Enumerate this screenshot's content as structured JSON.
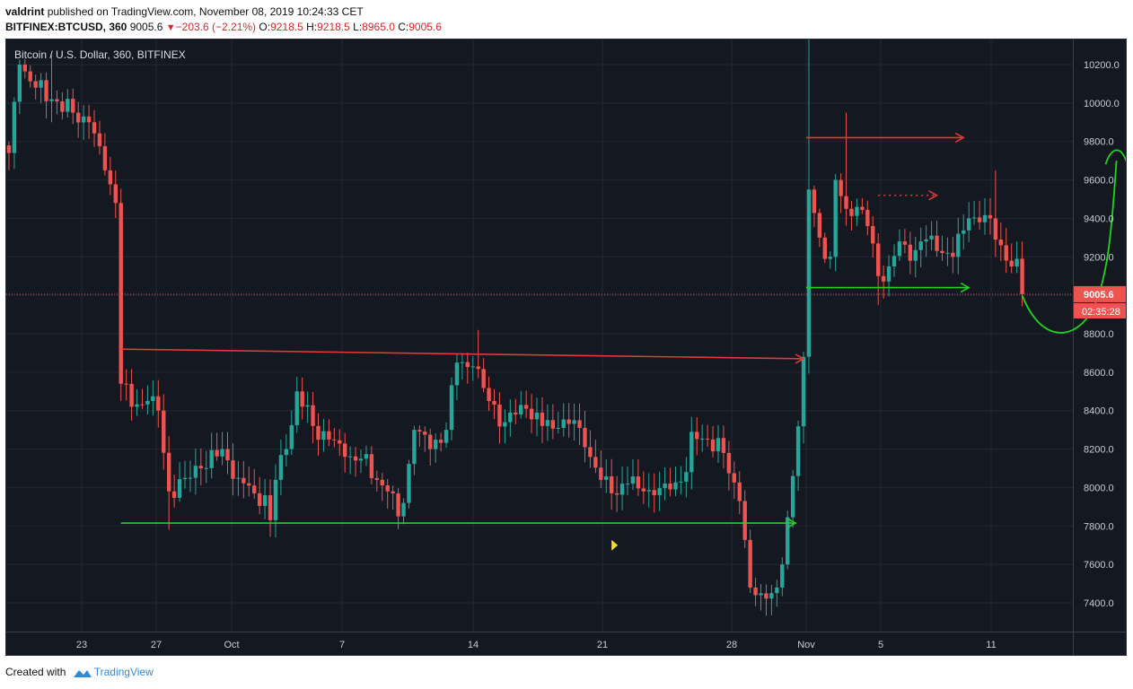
{
  "header": {
    "author": "valdrint",
    "published_text": "published on TradingView.com, November 08, 2019 10:24:33 CET",
    "symbol": "BITFINEX:BTCUSD, 360",
    "last": "9005.6",
    "change": "−203.6 (−2.21%)",
    "o_label": "O:",
    "o": "9218.5",
    "h_label": "H:",
    "h": "9218.5",
    "l_label": "L:",
    "l": "8965.0",
    "c_label": "C:",
    "c": "9005.6"
  },
  "chart_data": {
    "type": "candlestick",
    "title": "Bitcoin / U.S. Dollar, 360, BITFINEX",
    "price_label": "9005.6",
    "countdown_label": "02:35:28",
    "y_ticks": [
      "10200.0",
      "10000.0",
      "9800.0",
      "9600.0",
      "9400.0",
      "9200.0",
      "9000.0",
      "8800.0",
      "8600.0",
      "8400.0",
      "8200.0",
      "8000.0",
      "7800.0",
      "7600.0",
      "7400.0"
    ],
    "x_ticks": [
      "23",
      "27",
      "Oct",
      "7",
      "14",
      "21",
      "28",
      "Nov",
      "5",
      "11"
    ],
    "colors": {
      "up": "#26a69a",
      "down": "#ef5350",
      "bg": "#141821",
      "annot_red": "#e53935",
      "annot_green": "#22d41e",
      "marker": "#f5e11b"
    },
    "anchors": [
      [
        0,
        9740
      ],
      [
        2,
        10200
      ],
      [
        5,
        10080
      ],
      [
        8,
        10020
      ],
      [
        12,
        9950
      ],
      [
        15,
        9900
      ],
      [
        18,
        9650
      ],
      [
        20,
        9480
      ],
      [
        21,
        8540
      ],
      [
        23,
        8420
      ],
      [
        26,
        8450
      ],
      [
        28,
        8400
      ],
      [
        30,
        7980
      ],
      [
        33,
        8050
      ],
      [
        36,
        8100
      ],
      [
        40,
        8200
      ],
      [
        43,
        8050
      ],
      [
        46,
        7970
      ],
      [
        48,
        7960
      ],
      [
        49,
        7830
      ],
      [
        50,
        8040
      ],
      [
        52,
        8200
      ],
      [
        54,
        8500
      ],
      [
        57,
        8320
      ],
      [
        60,
        8250
      ],
      [
        63,
        8160
      ],
      [
        66,
        8150
      ],
      [
        69,
        8040
      ],
      [
        71,
        7980
      ],
      [
        73,
        7850
      ],
      [
        74,
        7920
      ],
      [
        76,
        8300
      ],
      [
        79,
        8200
      ],
      [
        82,
        8300
      ],
      [
        84,
        8650
      ],
      [
        87,
        8630
      ],
      [
        90,
        8450
      ],
      [
        93,
        8340
      ],
      [
        95,
        8380
      ],
      [
        97,
        8410
      ],
      [
        100,
        8320
      ],
      [
        103,
        8310
      ],
      [
        106,
        8350
      ],
      [
        108,
        8210
      ],
      [
        111,
        8040
      ],
      [
        113,
        7970
      ],
      [
        116,
        8020
      ],
      [
        119,
        7980
      ],
      [
        121,
        7960
      ],
      [
        124,
        7990
      ],
      [
        127,
        8080
      ],
      [
        128,
        8290
      ],
      [
        131,
        8250
      ],
      [
        134,
        8180
      ],
      [
        137,
        7930
      ],
      [
        139,
        7480
      ],
      [
        141,
        7450
      ],
      [
        144,
        7480
      ],
      [
        145,
        7600
      ],
      [
        147,
        8060
      ],
      [
        149,
        8680
      ],
      [
        150,
        9550
      ],
      [
        152,
        9300
      ],
      [
        154,
        9200
      ],
      [
        155,
        9600
      ],
      [
        157,
        9450
      ],
      [
        159,
        9460
      ],
      [
        161,
        9360
      ],
      [
        163,
        9100
      ],
      [
        165,
        9150
      ],
      [
        167,
        9280
      ],
      [
        169,
        9180
      ],
      [
        171,
        9280
      ],
      [
        173,
        9310
      ],
      [
        175,
        9220
      ],
      [
        177,
        9200
      ],
      [
        180,
        9400
      ],
      [
        182,
        9380
      ],
      [
        184,
        9400
      ],
      [
        186,
        9260
      ],
      [
        188,
        9150
      ],
      [
        189,
        9190
      ],
      [
        190,
        9005.6
      ]
    ],
    "annotations": [
      {
        "type": "arrow",
        "color": "red",
        "from": [
          149.5,
          9820
        ],
        "to": [
          179,
          9820
        ]
      },
      {
        "type": "arrow",
        "color": "red",
        "from": [
          21,
          8720
        ],
        "to": [
          149,
          8670
        ]
      },
      {
        "type": "arrow",
        "color": "green",
        "from": [
          21,
          7815
        ],
        "to": [
          147.5,
          7815
        ]
      },
      {
        "type": "arrow",
        "color": "green",
        "from": [
          149.5,
          9040
        ],
        "to": [
          180,
          9040
        ]
      },
      {
        "type": "dotted-arrow",
        "color": "red",
        "from": [
          163,
          9520
        ],
        "to": [
          174,
          9520
        ]
      },
      {
        "type": "curve",
        "color": "green",
        "description": "projected dip then rally"
      },
      {
        "type": "marker",
        "color": "yellow",
        "at": [
          113.5,
          7700
        ]
      }
    ]
  },
  "footer": {
    "created_with": "Created with",
    "brand": "TradingView"
  }
}
